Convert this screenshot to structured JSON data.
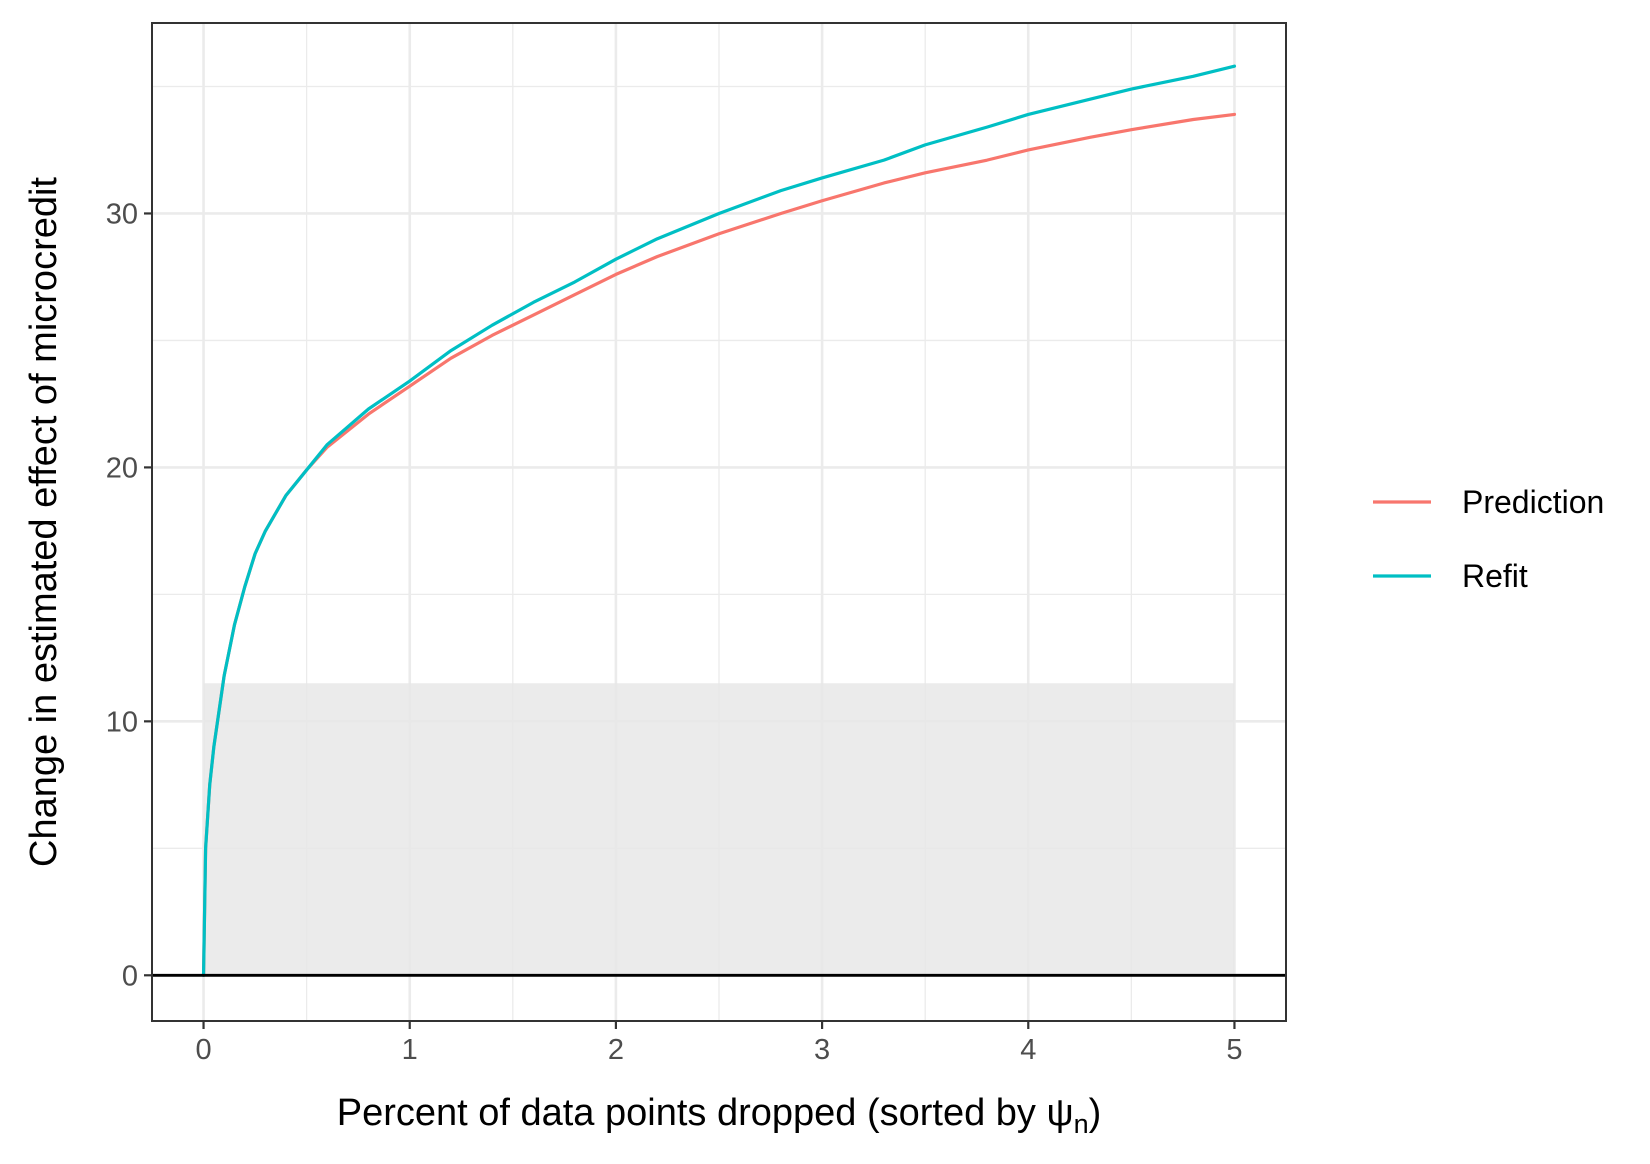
{
  "chart_data": {
    "type": "line",
    "xlabel": "Percent of data points dropped (sorted by ψ",
    "xlabel_subscript": "n",
    "xlabel_suffix": ")",
    "ylabel": "Change in estimated effect of microcredit",
    "xlim": [
      -0.25,
      5.25
    ],
    "ylim": [
      -1.8,
      37.5
    ],
    "x_ticks": [
      0,
      1,
      2,
      3,
      4,
      5
    ],
    "x_tick_labels": [
      "0",
      "1",
      "2",
      "3",
      "4",
      "5"
    ],
    "y_ticks": [
      0,
      10,
      20,
      30
    ],
    "y_tick_labels": [
      "0",
      "10",
      "20",
      "30"
    ],
    "x_minor_ticks": [
      0.5,
      1.5,
      2.5,
      3.5,
      4.5
    ],
    "y_minor_ticks": [
      5,
      15,
      25,
      35
    ],
    "grid": true,
    "legend_position": "right",
    "hline": {
      "y": 0,
      "color": "#000000"
    },
    "shaded_region": {
      "x": [
        0,
        5
      ],
      "y": [
        0,
        11.5
      ],
      "color": "#e8e8e8"
    },
    "x": [
      0,
      0.01,
      0.03,
      0.05,
      0.1,
      0.15,
      0.2,
      0.25,
      0.3,
      0.4,
      0.5,
      0.6,
      0.8,
      1.0,
      1.2,
      1.4,
      1.6,
      1.8,
      2.0,
      2.2,
      2.5,
      2.8,
      3.0,
      3.3,
      3.5,
      3.8,
      4.0,
      4.3,
      4.5,
      4.8,
      5.0
    ],
    "series": [
      {
        "name": "Prediction",
        "color": "#F8766D",
        "values": [
          0,
          5.0,
          7.5,
          9.0,
          11.8,
          13.8,
          15.3,
          16.6,
          17.5,
          18.9,
          19.9,
          20.8,
          22.1,
          23.2,
          24.3,
          25.2,
          26.0,
          26.8,
          27.6,
          28.3,
          29.2,
          30.0,
          30.5,
          31.2,
          31.6,
          32.1,
          32.5,
          33.0,
          33.3,
          33.7,
          33.9
        ]
      },
      {
        "name": "Refit",
        "color": "#00BFC4",
        "values": [
          0,
          5.0,
          7.5,
          9.0,
          11.8,
          13.8,
          15.3,
          16.6,
          17.5,
          18.9,
          19.9,
          20.9,
          22.3,
          23.4,
          24.6,
          25.6,
          26.5,
          27.3,
          28.2,
          29.0,
          30.0,
          30.9,
          31.4,
          32.1,
          32.7,
          33.4,
          33.9,
          34.5,
          34.9,
          35.4,
          35.8
        ]
      }
    ]
  }
}
